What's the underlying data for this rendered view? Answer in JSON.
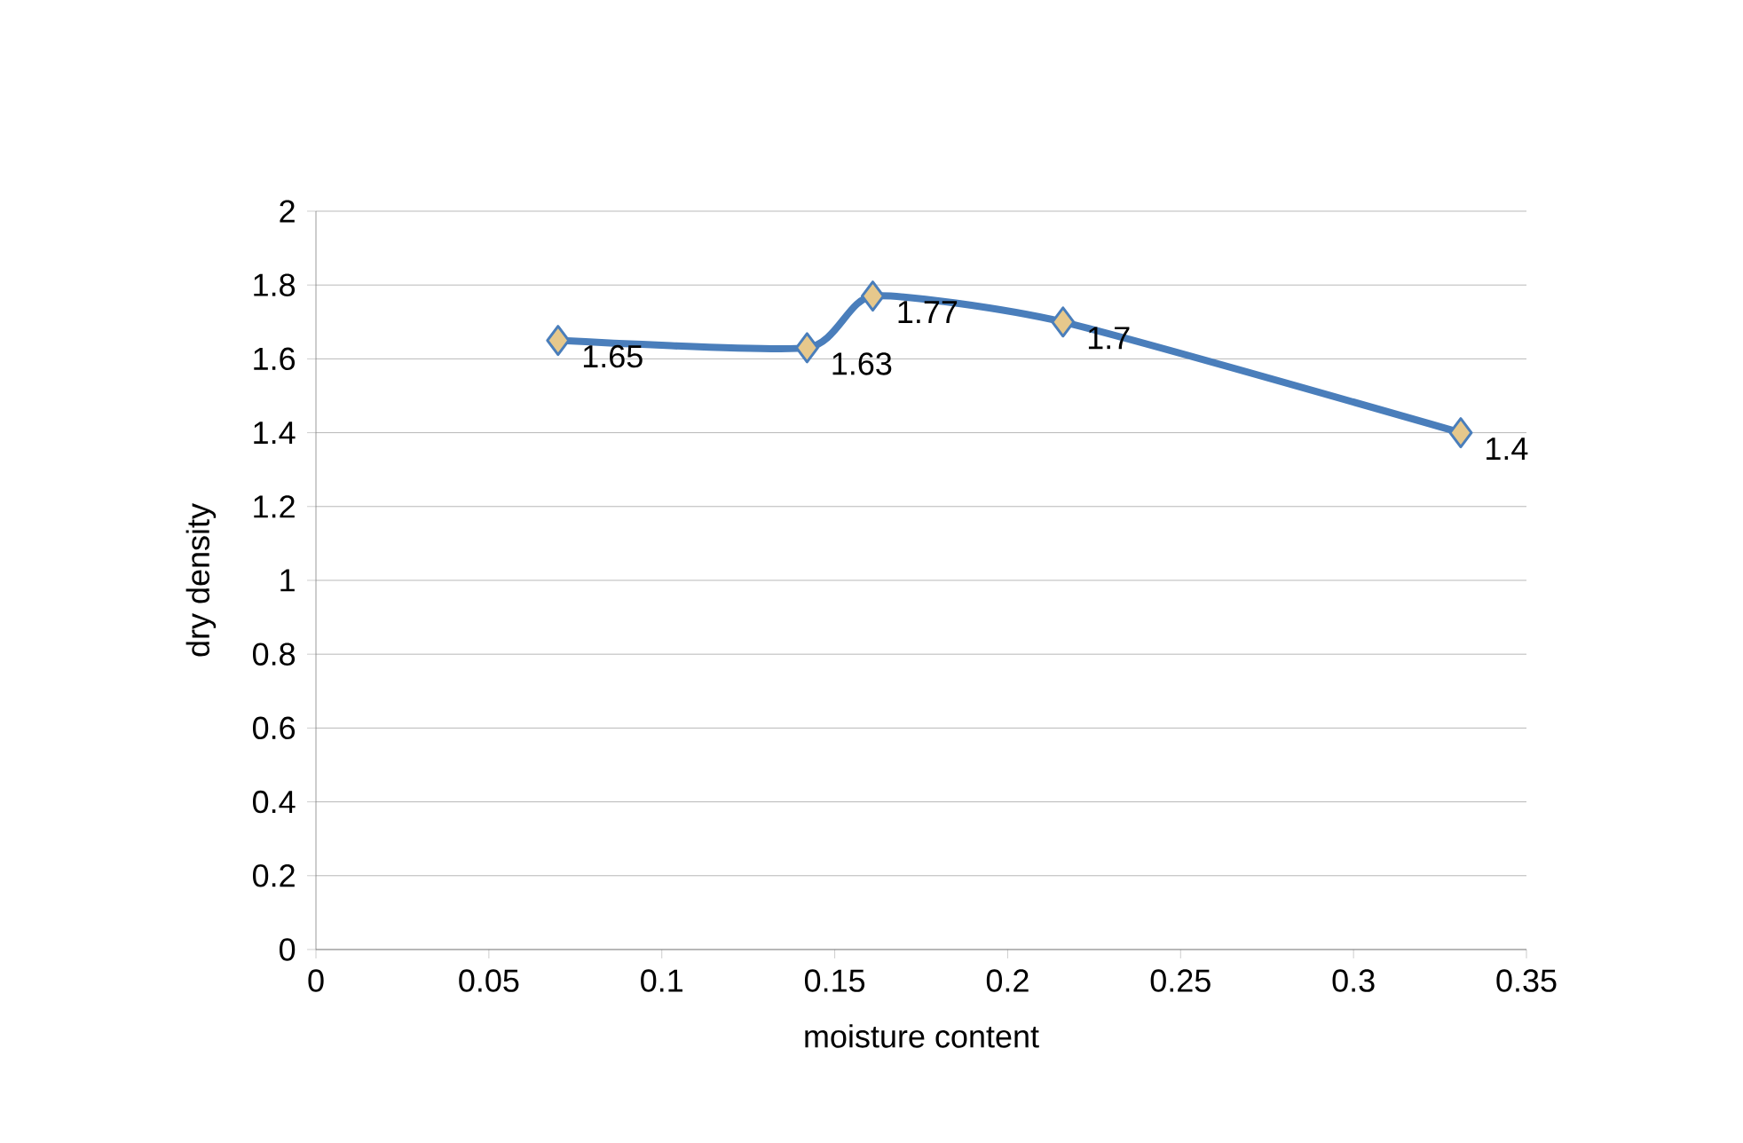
{
  "chart_data": {
    "type": "line",
    "xlabel": "moisture content",
    "ylabel": "dry density",
    "x": [
      0.07,
      0.142,
      0.161,
      0.216,
      0.331
    ],
    "values": [
      1.65,
      1.63,
      1.77,
      1.7,
      1.4
    ],
    "color": "#4a7ebb",
    "marker": "diamond",
    "line_style": "solid",
    "data_labels": true,
    "grid": "y",
    "xlim": [
      0,
      0.35
    ],
    "xticks": [
      0,
      0.05,
      0.1,
      0.15,
      0.2,
      0.25,
      0.3,
      0.35
    ],
    "ylim": [
      0,
      2
    ],
    "yticks": [
      0,
      0.2,
      0.4,
      0.6,
      0.8,
      1,
      1.2,
      1.4,
      1.6,
      1.8,
      2
    ]
  }
}
